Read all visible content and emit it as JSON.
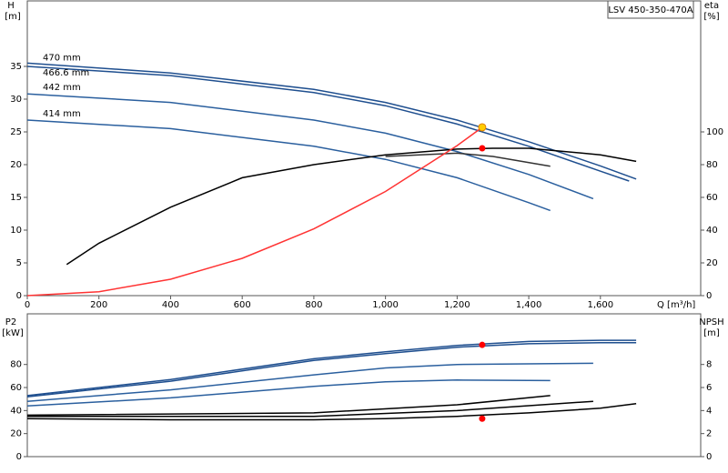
{
  "chart_data": [
    {
      "type": "line",
      "label_box": "LSV 450-350-470A",
      "ylabel": "H",
      "yunit": "[m]",
      "y2label": "eta",
      "y2unit": "[%]",
      "xlabel": "Q [m³/h]",
      "xlim": [
        0,
        1880
      ],
      "ylim": [
        0,
        45
      ],
      "y2lim": [
        0,
        180
      ],
      "xticks": [
        0,
        200,
        400,
        600,
        800,
        {
          "value": 1000,
          "label": "1,000"
        },
        {
          "value": 1200,
          "label": "1,200"
        },
        {
          "value": 1400,
          "label": "1,400"
        },
        {
          "value": 1600,
          "label": "1,600"
        }
      ],
      "yticks": [
        0,
        5,
        10,
        15,
        20,
        25,
        30,
        35
      ],
      "y2ticks": [
        0,
        20,
        40,
        60,
        80,
        100
      ],
      "series": [
        {
          "name": "470 mm",
          "color": "#1f4f8f",
          "x": [
            0,
            400,
            800,
            1000,
            1200,
            1400,
            1600,
            1700
          ],
          "values": [
            35.5,
            34,
            31.5,
            29.5,
            26.8,
            23.5,
            19.8,
            17.8
          ]
        },
        {
          "name": "466.6 mm",
          "color": "#1f4f8f",
          "x": [
            0,
            400,
            800,
            1000,
            1200,
            1400,
            1600,
            1680
          ],
          "values": [
            35,
            33.6,
            31,
            29,
            26.2,
            22.8,
            19,
            17.5
          ]
        },
        {
          "name": "442 mm",
          "color": "#2a5f9e",
          "x": [
            0,
            400,
            800,
            1000,
            1200,
            1400,
            1580
          ],
          "values": [
            30.8,
            29.5,
            26.8,
            24.8,
            22,
            18.5,
            14.8
          ]
        },
        {
          "name": "414 mm",
          "color": "#2a5f9e",
          "x": [
            0,
            400,
            800,
            1000,
            1200,
            1400,
            1460
          ],
          "values": [
            26.8,
            25.5,
            22.8,
            20.8,
            18,
            14.2,
            13
          ]
        },
        {
          "color": "#000000",
          "axis": "y2",
          "x": [
            110,
            200,
            400,
            600,
            800,
            1000,
            1200,
            1300,
            1400,
            1600,
            1700
          ],
          "values": [
            19,
            32,
            54,
            72,
            80,
            86,
            89.5,
            90,
            90,
            86,
            82
          ]
        },
        {
          "color": "#333333",
          "axis": "y2",
          "x": [
            1000,
            1200,
            1300,
            1460
          ],
          "values": [
            85,
            87,
            85,
            79
          ]
        },
        {
          "color": "#ff3333",
          "x": [
            0,
            200,
            400,
            600,
            800,
            1000,
            1200,
            1270
          ],
          "values": [
            0,
            0.6,
            2.5,
            5.7,
            10.2,
            15.9,
            22.9,
            25.7
          ]
        },
        {
          "color": "#ffcc00",
          "marker": true,
          "x": [
            1270
          ],
          "values": [
            25.7
          ]
        },
        {
          "color": "#ff0000",
          "marker": true,
          "axis": "y2",
          "x": [
            1270
          ],
          "values": [
            90
          ]
        }
      ]
    },
    {
      "type": "line",
      "ylabel": "P2",
      "yunit": "[kW]",
      "y2label": "NPSH",
      "y2unit": "[m]",
      "xlim": [
        0,
        1880
      ],
      "ylim": [
        0,
        124
      ],
      "y2lim": [
        0,
        12.4
      ],
      "yticks": [
        0,
        20,
        40,
        60,
        80
      ],
      "y2ticks": [
        0,
        2,
        4,
        6,
        8
      ],
      "series": [
        {
          "color": "#1f4f8f",
          "x": [
            0,
            400,
            800,
            1000,
            1200,
            1400,
            1600,
            1700
          ],
          "values": [
            53,
            67,
            85,
            91,
            96.6,
            100,
            101,
            101
          ]
        },
        {
          "color": "#1f4f8f",
          "x": [
            0,
            400,
            800,
            1000,
            1200,
            1400,
            1600,
            1700
          ],
          "values": [
            52,
            65.5,
            83.5,
            89.5,
            95,
            98,
            99,
            99
          ]
        },
        {
          "color": "#2a5f9e",
          "x": [
            0,
            400,
            800,
            1000,
            1200,
            1580
          ],
          "values": [
            48,
            58,
            71,
            77,
            80,
            81
          ]
        },
        {
          "color": "#2a5f9e",
          "x": [
            0,
            400,
            800,
            1000,
            1200,
            1460
          ],
          "values": [
            44,
            51,
            61,
            65,
            66.5,
            66
          ]
        },
        {
          "color": "#000000",
          "axis": "y2",
          "x": [
            0,
            400,
            800,
            1000,
            1200,
            1400,
            1600,
            1700
          ],
          "values": [
            3.3,
            3.2,
            3.2,
            3.3,
            3.5,
            3.8,
            4.2,
            4.6
          ]
        },
        {
          "color": "#000000",
          "axis": "y2",
          "x": [
            0,
            800,
            1200,
            1580
          ],
          "values": [
            3.5,
            3.5,
            4.0,
            4.8
          ]
        },
        {
          "color": "#000000",
          "axis": "y2",
          "x": [
            0,
            800,
            1200,
            1460
          ],
          "values": [
            3.6,
            3.8,
            4.5,
            5.3
          ]
        },
        {
          "color": "#ff0000",
          "marker": true,
          "x": [
            1270
          ],
          "values": [
            97
          ]
        },
        {
          "color": "#ff0000",
          "marker": true,
          "axis": "y2",
          "x": [
            1270
          ],
          "values": [
            3.3
          ]
        }
      ]
    }
  ]
}
